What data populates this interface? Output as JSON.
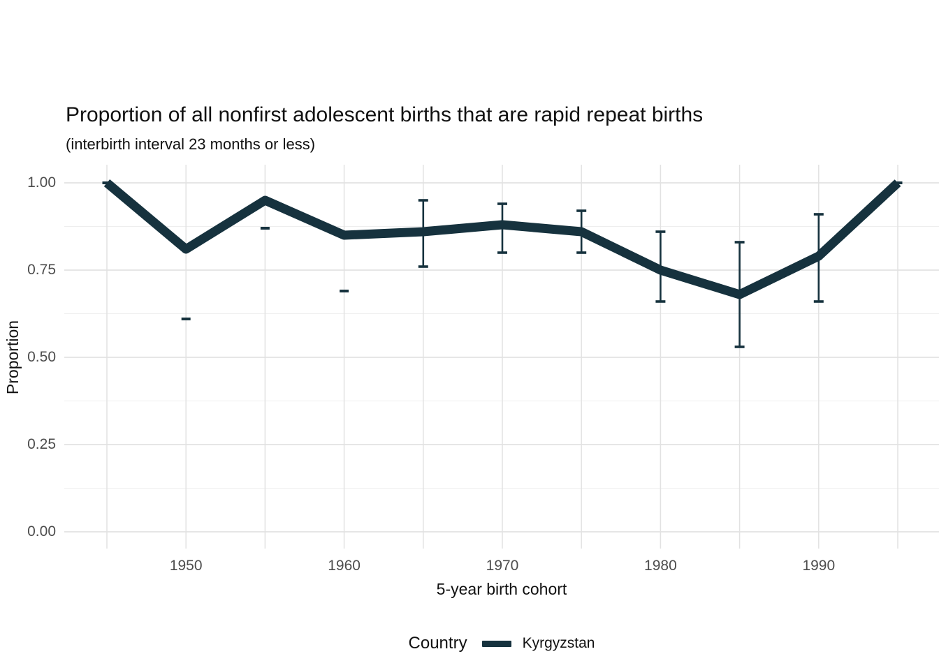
{
  "chart_data": {
    "type": "line",
    "title": "Proportion of all nonfirst adolescent births that are rapid repeat births",
    "subtitle": "(interbirth interval 23 months or less)",
    "xlabel": "5-year birth cohort",
    "ylabel": "Proportion",
    "xlim": [
      1945,
      1995
    ],
    "ylim": [
      0.0,
      1.0
    ],
    "grid": "on",
    "x_gridline_years": [
      1945,
      1950,
      1955,
      1960,
      1965,
      1970,
      1975,
      1980,
      1985,
      1990,
      1995
    ],
    "x_ticks": [
      {
        "year": 1950,
        "label": "1950"
      },
      {
        "year": 1960,
        "label": "1960"
      },
      {
        "year": 1970,
        "label": "1970"
      },
      {
        "year": 1980,
        "label": "1980"
      },
      {
        "year": 1990,
        "label": "1990"
      }
    ],
    "y_ticks": [
      {
        "value": 0.0,
        "label": "0.00"
      },
      {
        "value": 0.25,
        "label": "0.25"
      },
      {
        "value": 0.5,
        "label": "0.50"
      },
      {
        "value": 0.75,
        "label": "0.75"
      },
      {
        "value": 1.0,
        "label": "1.00"
      }
    ],
    "y_minor_gridlines": [
      0.125,
      0.375,
      0.625,
      0.875
    ],
    "legend": {
      "position": "bottom",
      "title": "Country",
      "items": [
        {
          "label": "Kyrgyzstan",
          "color": "#16323e"
        }
      ]
    },
    "series": [
      {
        "name": "Kyrgyzstan",
        "color": "#16323e",
        "points": [
          {
            "year": 1945,
            "value": 1.0,
            "errorbar": "cap-only",
            "cap_at": 1.0
          },
          {
            "year": 1950,
            "value": 0.81,
            "errorbar": "cap-only",
            "cap_at": 0.61
          },
          {
            "year": 1955,
            "value": 0.95,
            "errorbar": "cap-only",
            "cap_at": 0.87
          },
          {
            "year": 1960,
            "value": 0.85,
            "errorbar": "cap-only",
            "cap_at": 0.69
          },
          {
            "year": 1965,
            "value": 0.86,
            "errorbar": "full",
            "ci_low": 0.76,
            "ci_high": 0.95
          },
          {
            "year": 1970,
            "value": 0.88,
            "errorbar": "full",
            "ci_low": 0.8,
            "ci_high": 0.94
          },
          {
            "year": 1975,
            "value": 0.86,
            "errorbar": "full",
            "ci_low": 0.8,
            "ci_high": 0.92
          },
          {
            "year": 1980,
            "value": 0.75,
            "errorbar": "full",
            "ci_low": 0.66,
            "ci_high": 0.86
          },
          {
            "year": 1985,
            "value": 0.68,
            "errorbar": "full",
            "ci_low": 0.53,
            "ci_high": 0.83
          },
          {
            "year": 1990,
            "value": 0.79,
            "errorbar": "full",
            "ci_low": 0.66,
            "ci_high": 0.91
          },
          {
            "year": 1995,
            "value": 1.0,
            "errorbar": "cap-only",
            "cap_at": 1.0
          }
        ]
      }
    ],
    "colors": {
      "series_line": "#16323e",
      "grid_major": "#e2e2e2",
      "grid_minor": "#eeeeee",
      "tick_text": "#4d4d4d",
      "title_text": "#111111",
      "background": "#ffffff"
    }
  }
}
